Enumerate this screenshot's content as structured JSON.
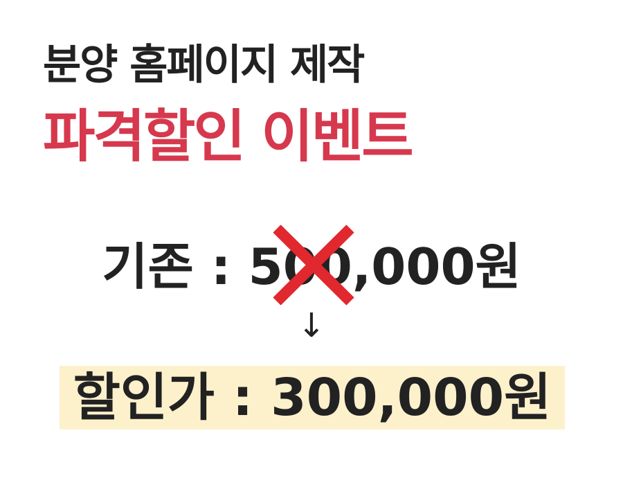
{
  "headline": {
    "line1": "분양 홈페이지 제작",
    "line2": "파격할인 이벤트"
  },
  "pricing": {
    "original": "기존 : 500,000원",
    "arrow": "↓",
    "discounted": "할인가 : 300,000원"
  },
  "icons": {
    "strike": "cross-icon"
  },
  "colors": {
    "accent": "#d6384d",
    "text": "#222222",
    "highlight": "#fdf1cc",
    "cross": "#e0282e"
  }
}
